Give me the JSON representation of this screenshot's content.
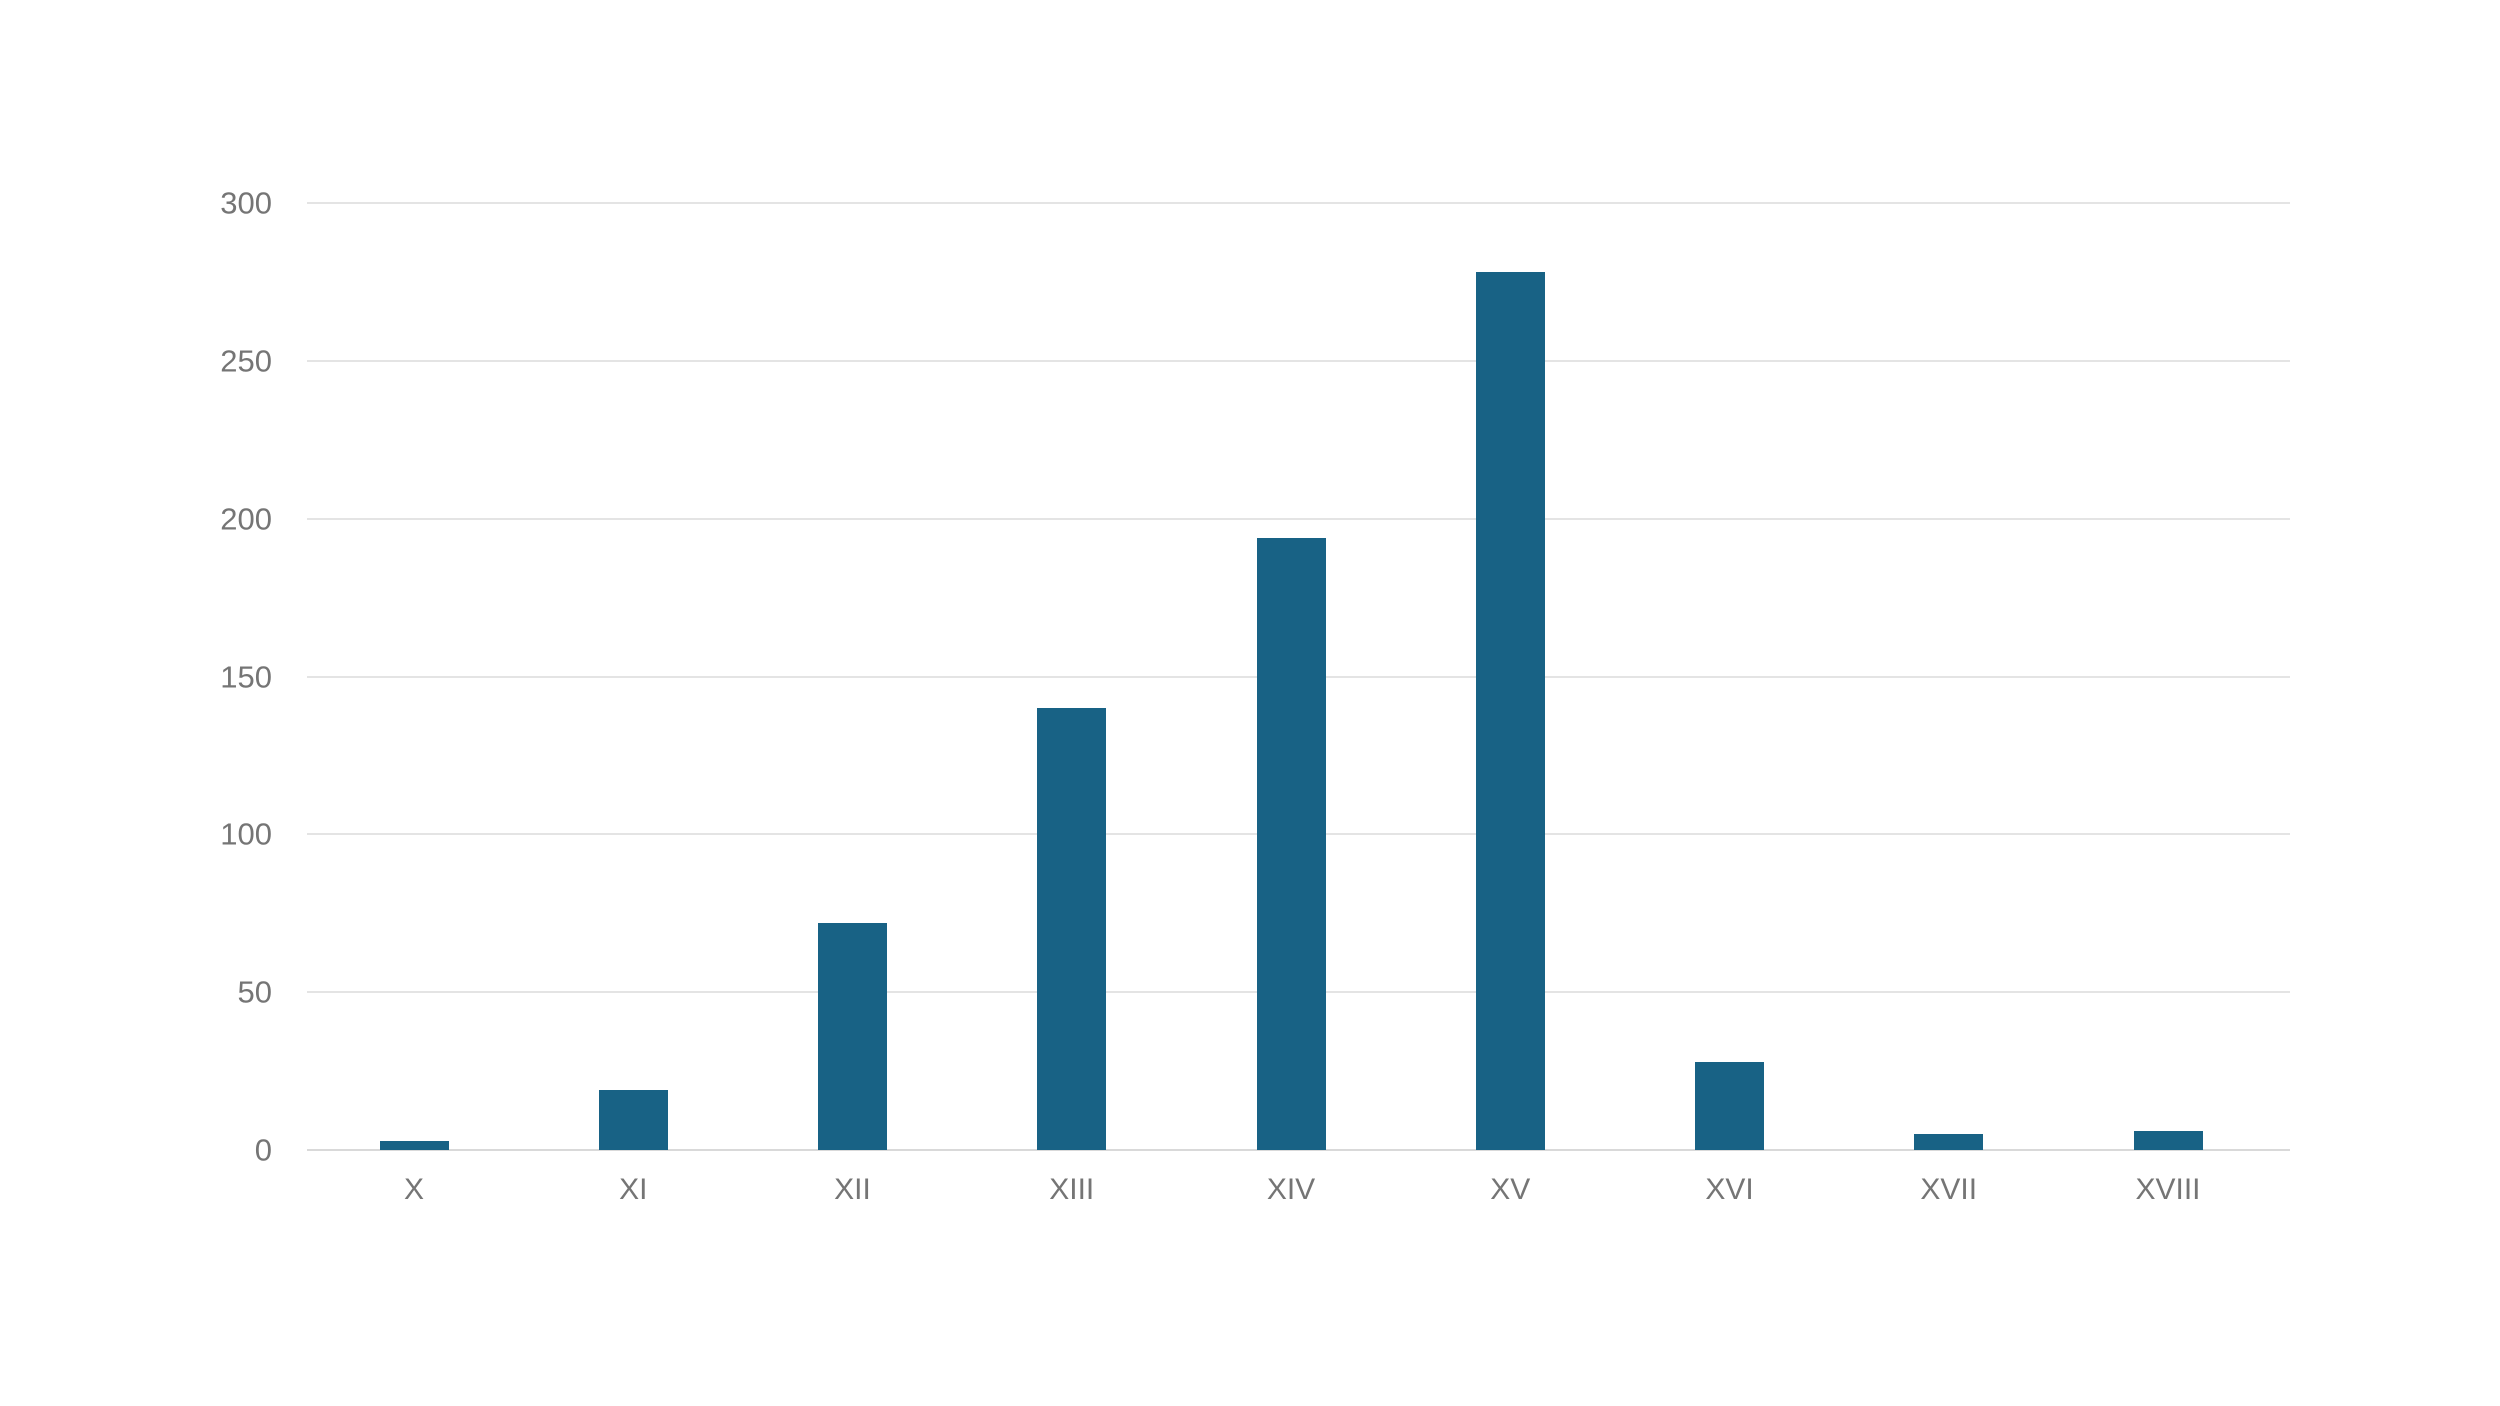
{
  "chart_data": {
    "type": "bar",
    "categories": [
      "X",
      "XI",
      "XII",
      "XIII",
      "XIV",
      "XV",
      "XVI",
      "XVII",
      "XVIII"
    ],
    "values": [
      3,
      19,
      72,
      140,
      194,
      278,
      28,
      5,
      6
    ],
    "yticks": [
      0,
      50,
      100,
      150,
      200,
      250,
      300
    ],
    "ylim": [
      0,
      300
    ],
    "grid": true,
    "legend": false,
    "colors": {
      "bar": "#186285",
      "gridline": "#e4e4e4",
      "baseline": "#d9d9d9",
      "tick_label": "#757575",
      "background": "#ffffff"
    }
  }
}
